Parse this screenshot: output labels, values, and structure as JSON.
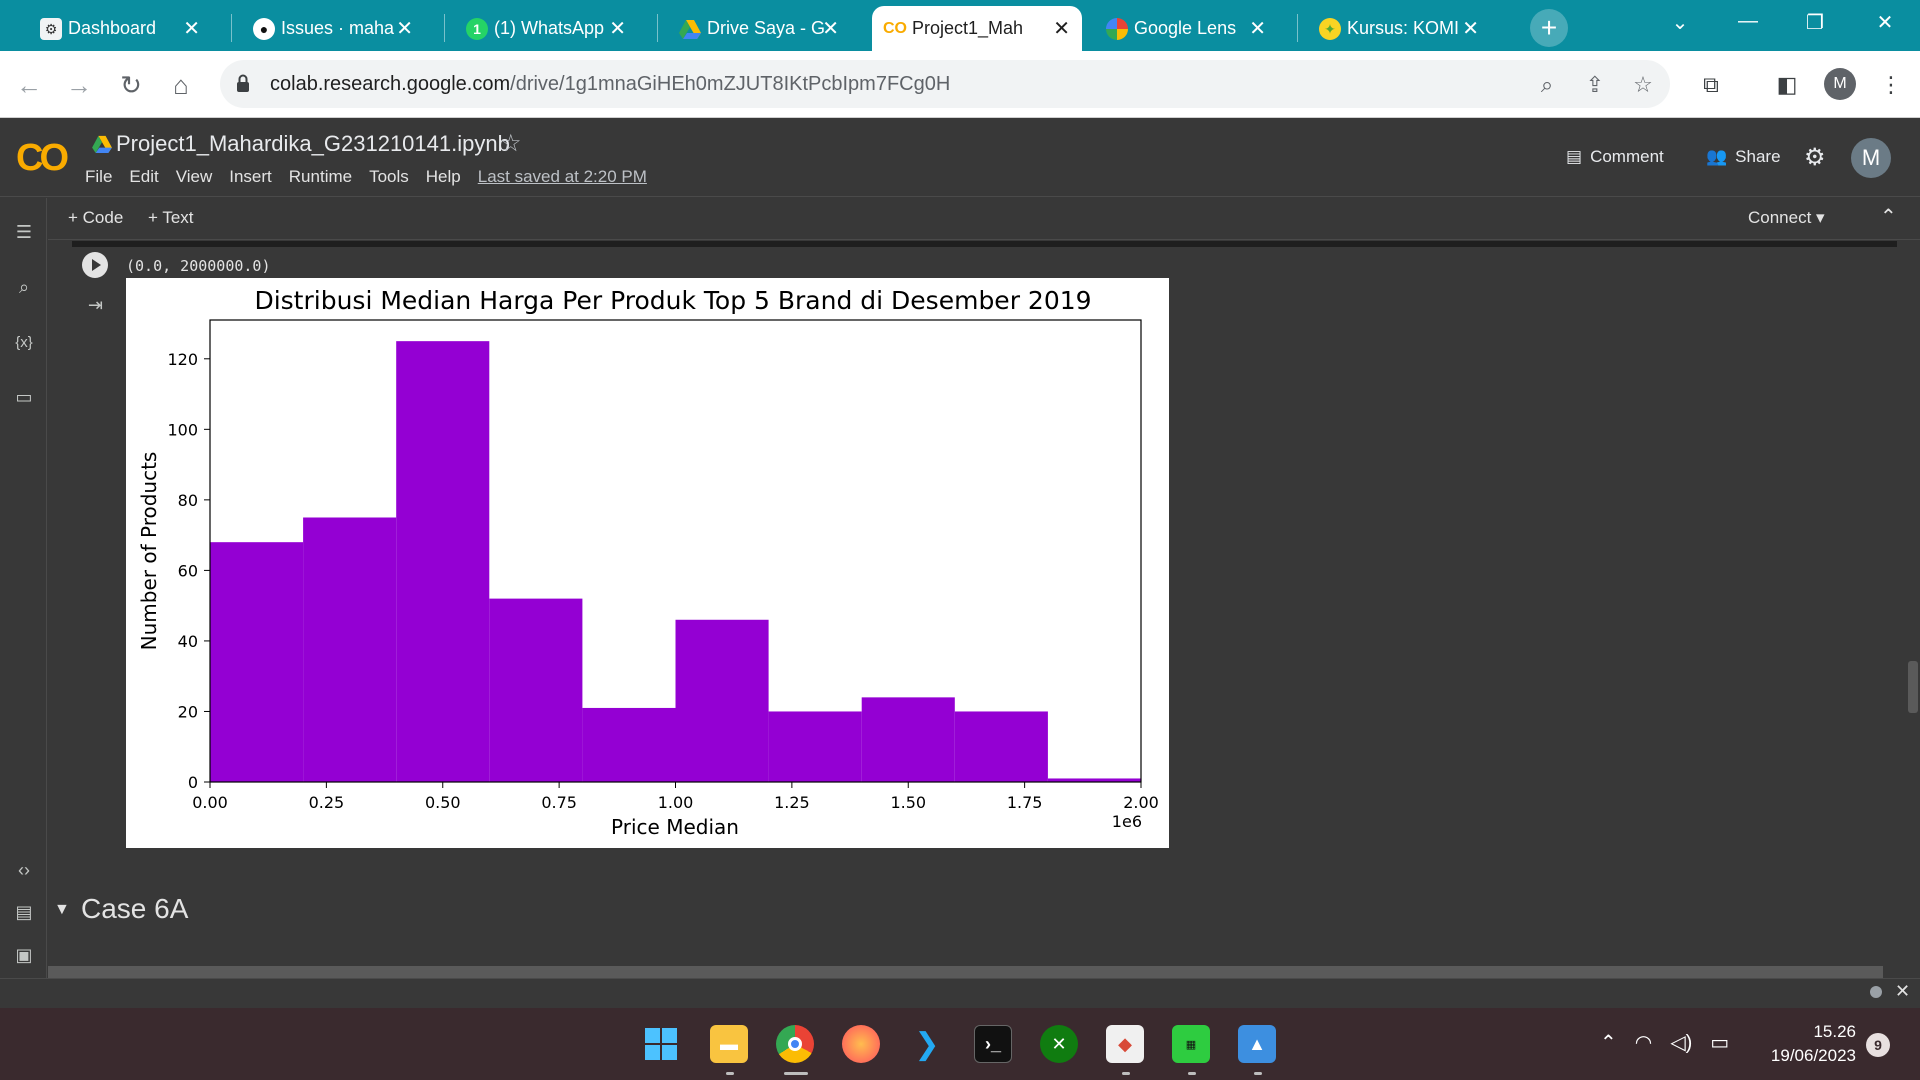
{
  "browser": {
    "tabs": [
      {
        "title": "Dashboard",
        "favicon_icon": "gear-icon"
      },
      {
        "title": "Issues · maha",
        "favicon_icon": "github-icon"
      },
      {
        "title": "(1) WhatsApp",
        "favicon_icon": "whatsapp-icon"
      },
      {
        "title": "Drive Saya - G",
        "favicon_icon": "drive-icon"
      },
      {
        "title": "Project1_Mah",
        "favicon_icon": "colab-icon"
      },
      {
        "title": "Google Lens",
        "favicon_icon": "lens-icon"
      },
      {
        "title": "Kursus: KOMI",
        "favicon_icon": "course-icon"
      }
    ],
    "active_tab_index": 4,
    "url_host": "colab.research.google.com",
    "url_path": "/drive/1g1mnaGiHEh0mZJUT8IKtPcbIpm7FCg0H",
    "profile_initial": "M"
  },
  "colab": {
    "notebook_title": "Project1_Mahardika_G231210141.ipynb",
    "menu": [
      "File",
      "Edit",
      "View",
      "Insert",
      "Runtime",
      "Tools",
      "Help"
    ],
    "last_saved": "Last saved at 2:20 PM",
    "comment_label": "Comment",
    "share_label": "Share",
    "user_initial": "M",
    "add_code_label": "Code",
    "add_text_label": "Text",
    "connect_label": "Connect",
    "cell_output_text": "(0.0, 2000000.0)",
    "section_heading": "Case 6A"
  },
  "chart_data": {
    "type": "histogram",
    "title": "Distribusi Median Harga Per Produk Top 5 Brand di Desember 2019",
    "xlabel": "Price Median",
    "ylabel": "Number of Products",
    "x_offset_label": "1e6",
    "xlim": [
      0,
      2000000
    ],
    "ylim": [
      0,
      131
    ],
    "x_ticks": [
      0,
      250000,
      500000,
      750000,
      1000000,
      1250000,
      1500000,
      1750000,
      2000000
    ],
    "x_tick_labels": [
      "0.00",
      "0.25",
      "0.50",
      "0.75",
      "1.00",
      "1.25",
      "1.50",
      "1.75",
      "2.00"
    ],
    "y_ticks": [
      0,
      20,
      40,
      60,
      80,
      100,
      120
    ],
    "bin_edges": [
      0,
      200000,
      400000,
      600000,
      800000,
      1000000,
      1200000,
      1400000,
      1600000,
      1800000,
      2000000
    ],
    "values": [
      68,
      75,
      125,
      52,
      21,
      46,
      20,
      24,
      20,
      1
    ],
    "bar_color": "#9400d3",
    "grid": false
  },
  "taskbar": {
    "apps": [
      "windows-start",
      "file-explorer",
      "chrome",
      "firefox",
      "vscode",
      "terminal",
      "xbox",
      "git",
      "app",
      "photos"
    ],
    "time": "15.26",
    "date": "19/06/2023",
    "notification_count": "9"
  }
}
